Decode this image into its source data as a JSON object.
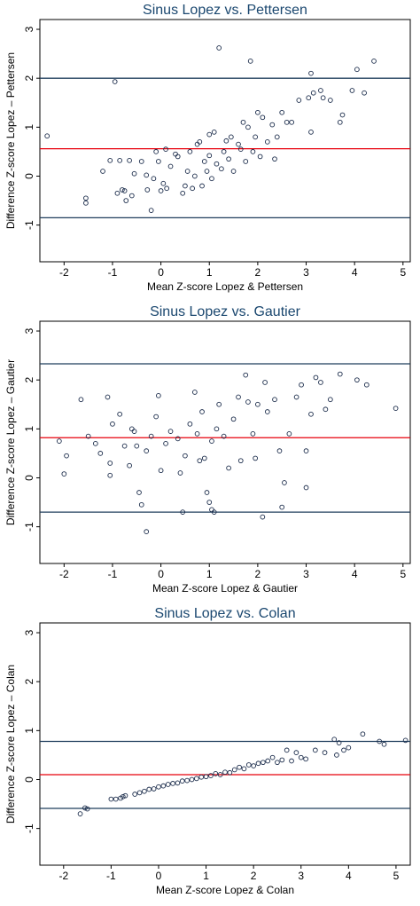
{
  "chart_data": [
    {
      "type": "scatter",
      "title": "Sinus Lopez vs. Pettersen",
      "xlabel": "Mean Z-score Lopez & Pettersen",
      "ylabel": "Difference Z-score Lopez – Pettersen",
      "xlim": [
        -2.5,
        5.15
      ],
      "ylim": [
        -1.75,
        3.2
      ],
      "xticks": [
        -2,
        -1,
        0,
        1,
        2,
        3,
        4,
        5
      ],
      "yticks": [
        -1,
        0,
        1,
        2,
        3
      ],
      "marker_color": "#1a2b4a",
      "reference_lines": [
        {
          "value": 2.0,
          "color": "#1f3d5c"
        },
        {
          "value": 0.56,
          "color": "#e8000b"
        },
        {
          "value": -0.85,
          "color": "#1f3d5c"
        }
      ],
      "x": [
        -2.35,
        -1.55,
        -1.55,
        -1.2,
        -1.05,
        -0.95,
        -0.9,
        -0.85,
        -0.8,
        -0.75,
        -0.72,
        -0.65,
        -0.6,
        -0.55,
        -0.4,
        -0.3,
        -0.28,
        -0.2,
        -0.15,
        -0.1,
        -0.05,
        0.0,
        0.05,
        0.1,
        0.12,
        0.2,
        0.3,
        0.35,
        0.45,
        0.5,
        0.55,
        0.6,
        0.65,
        0.7,
        0.75,
        0.8,
        0.85,
        0.9,
        0.95,
        1.0,
        1.0,
        1.05,
        1.1,
        1.15,
        1.2,
        1.25,
        1.3,
        1.35,
        1.4,
        1.45,
        1.5,
        1.6,
        1.65,
        1.7,
        1.75,
        1.8,
        1.85,
        1.9,
        1.95,
        2.0,
        2.05,
        2.1,
        2.2,
        2.3,
        2.35,
        2.4,
        2.5,
        2.6,
        2.7,
        2.85,
        3.05,
        3.1,
        3.1,
        3.15,
        3.3,
        3.35,
        3.5,
        3.7,
        3.75,
        3.95,
        4.05,
        4.2,
        4.4
      ],
      "y": [
        0.82,
        -0.45,
        -0.55,
        0.1,
        0.32,
        1.93,
        -0.35,
        0.32,
        -0.28,
        -0.3,
        -0.5,
        0.32,
        -0.4,
        0.05,
        0.3,
        0.02,
        -0.28,
        -0.7,
        -0.05,
        0.5,
        0.3,
        -0.3,
        -0.15,
        0.55,
        -0.25,
        0.2,
        0.45,
        0.4,
        -0.35,
        -0.2,
        0.1,
        0.5,
        -0.25,
        0.0,
        0.65,
        0.7,
        -0.2,
        0.3,
        0.1,
        0.42,
        0.85,
        -0.05,
        0.9,
        0.25,
        2.62,
        0.15,
        0.5,
        0.72,
        0.35,
        0.8,
        0.1,
        0.65,
        0.55,
        1.1,
        0.3,
        1.0,
        2.35,
        0.5,
        0.8,
        1.3,
        0.4,
        1.2,
        0.7,
        1.05,
        0.35,
        0.8,
        1.3,
        1.1,
        1.1,
        1.55,
        1.6,
        2.1,
        0.9,
        1.7,
        1.75,
        1.6,
        1.55,
        1.1,
        1.25,
        1.75,
        2.18,
        1.7,
        2.35
      ]
    },
    {
      "type": "scatter",
      "title": "Sinus Lopez vs. Gautier",
      "xlabel": "Mean Z-score Lopez & Gautier",
      "ylabel": "Difference Z-score Lopez – Gautier",
      "xlim": [
        -2.5,
        5.15
      ],
      "ylim": [
        -1.75,
        3.2
      ],
      "xticks": [
        -2,
        -1,
        0,
        1,
        2,
        3,
        4,
        5
      ],
      "yticks": [
        -1,
        0,
        1,
        2,
        3
      ],
      "marker_color": "#1a2b4a",
      "reference_lines": [
        {
          "value": 2.33,
          "color": "#1f3d5c"
        },
        {
          "value": 0.82,
          "color": "#e8000b"
        },
        {
          "value": -0.7,
          "color": "#1f3d5c"
        }
      ],
      "x": [
        -2.1,
        -2.0,
        -1.95,
        -1.65,
        -1.5,
        -1.35,
        -1.25,
        -1.1,
        -1.05,
        -1.05,
        -1.0,
        -0.85,
        -0.75,
        -0.65,
        -0.6,
        -0.55,
        -0.5,
        -0.45,
        -0.4,
        -0.3,
        -0.3,
        -0.2,
        -0.1,
        -0.05,
        0.0,
        0.1,
        0.2,
        0.35,
        0.4,
        0.45,
        0.5,
        0.6,
        0.7,
        0.75,
        0.8,
        0.85,
        0.9,
        0.95,
        1.0,
        1.05,
        1.05,
        1.1,
        1.15,
        1.2,
        1.3,
        1.4,
        1.5,
        1.6,
        1.65,
        1.75,
        1.8,
        1.9,
        1.95,
        2.0,
        2.1,
        2.15,
        2.2,
        2.35,
        2.45,
        2.5,
        2.55,
        2.65,
        2.8,
        2.9,
        3.0,
        3.0,
        3.1,
        3.2,
        3.3,
        3.4,
        3.5,
        3.7,
        4.05,
        4.25,
        4.85
      ],
      "y": [
        0.75,
        0.08,
        0.45,
        1.6,
        0.85,
        0.7,
        0.5,
        1.65,
        0.3,
        0.05,
        1.1,
        1.3,
        0.65,
        0.25,
        1.0,
        0.95,
        0.65,
        -0.3,
        -0.55,
        -1.1,
        0.55,
        0.85,
        1.25,
        1.68,
        0.15,
        0.7,
        0.95,
        0.8,
        0.1,
        -0.7,
        0.45,
        1.1,
        1.75,
        0.9,
        0.35,
        1.35,
        0.4,
        -0.3,
        -0.5,
        -0.65,
        0.75,
        -0.7,
        1.0,
        1.5,
        0.85,
        0.2,
        1.2,
        1.65,
        0.35,
        2.1,
        1.55,
        0.9,
        0.4,
        1.5,
        -0.8,
        1.95,
        1.35,
        1.6,
        0.55,
        -0.6,
        -0.1,
        0.9,
        1.65,
        1.9,
        0.55,
        -0.2,
        1.3,
        2.05,
        1.95,
        1.4,
        1.6,
        2.12,
        2.0,
        1.9,
        1.42
      ]
    },
    {
      "type": "scatter",
      "title": "Sinus Lopez vs. Colan",
      "xlabel": "Mean Z-score Lopez & Colan",
      "ylabel": "Difference Z-score Lopez – Colan",
      "xlim": [
        -2.5,
        5.3
      ],
      "ylim": [
        -1.75,
        3.2
      ],
      "xticks": [
        -2,
        -1,
        0,
        1,
        2,
        3,
        4,
        5
      ],
      "yticks": [
        -1,
        0,
        1,
        2,
        3
      ],
      "marker_color": "#1a2b4a",
      "reference_lines": [
        {
          "value": 0.78,
          "color": "#1f3d5c"
        },
        {
          "value": 0.1,
          "color": "#e8000b"
        },
        {
          "value": -0.59,
          "color": "#1f3d5c"
        }
      ],
      "x": [
        -1.65,
        -1.55,
        -1.5,
        -1.0,
        -0.9,
        -0.8,
        -0.75,
        -0.7,
        -0.5,
        -0.4,
        -0.3,
        -0.2,
        -0.1,
        0.0,
        0.1,
        0.2,
        0.3,
        0.4,
        0.5,
        0.6,
        0.7,
        0.8,
        0.9,
        1.0,
        1.1,
        1.2,
        1.3,
        1.4,
        1.5,
        1.6,
        1.7,
        1.8,
        1.9,
        2.0,
        2.1,
        2.2,
        2.3,
        2.4,
        2.5,
        2.6,
        2.7,
        2.8,
        2.9,
        3.0,
        3.1,
        3.3,
        3.5,
        3.7,
        3.75,
        3.8,
        3.9,
        4.0,
        4.3,
        4.65,
        4.75,
        5.2
      ],
      "y": [
        -0.7,
        -0.58,
        -0.6,
        -0.4,
        -0.4,
        -0.38,
        -0.35,
        -0.33,
        -0.3,
        -0.27,
        -0.24,
        -0.2,
        -0.19,
        -0.15,
        -0.13,
        -0.1,
        -0.08,
        -0.07,
        -0.03,
        -0.02,
        0.0,
        0.02,
        0.05,
        0.06,
        0.08,
        0.12,
        0.1,
        0.15,
        0.14,
        0.2,
        0.25,
        0.22,
        0.3,
        0.28,
        0.33,
        0.35,
        0.38,
        0.45,
        0.35,
        0.4,
        0.6,
        0.38,
        0.55,
        0.45,
        0.42,
        0.6,
        0.55,
        0.82,
        0.5,
        0.75,
        0.6,
        0.65,
        0.93,
        0.78,
        0.72,
        0.8
      ]
    }
  ]
}
